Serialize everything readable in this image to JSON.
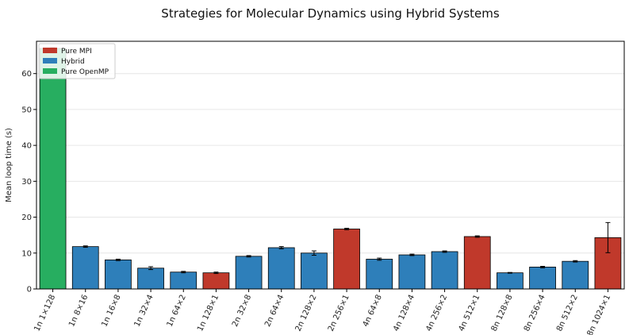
{
  "chart_data": {
    "type": "bar",
    "title": "Strategies for Molecular Dynamics using Hybrid Systems",
    "xlabel": "",
    "ylabel": "Mean loop time (s)",
    "ylim": [
      0,
      69
    ],
    "yticks": [
      0,
      10,
      20,
      30,
      40,
      50,
      60
    ],
    "grid": "horizontal",
    "legend_position": "top-left",
    "categories": [
      "1n 1×128",
      "1n 8×16",
      "1n 16×8",
      "1n 32×4",
      "1n 64×2",
      "1n 128×1",
      "2n 32×8",
      "2n 64×4",
      "2n 128×2",
      "2n 256×1",
      "4n 64×8",
      "4n 128×4",
      "4n 256×2",
      "4n 512×1",
      "8n 128×8",
      "8n 256×4",
      "8n 512×2",
      "8n 1024×1"
    ],
    "values": [
      67.0,
      11.8,
      8.1,
      5.8,
      4.7,
      4.5,
      9.1,
      11.5,
      10.0,
      16.7,
      8.3,
      9.5,
      10.4,
      14.6,
      4.5,
      6.1,
      7.7,
      14.3
    ],
    "errors": [
      0.2,
      0.2,
      0.2,
      0.4,
      0.2,
      0.2,
      0.2,
      0.3,
      0.6,
      0.2,
      0.3,
      0.2,
      0.2,
      0.2,
      0.1,
      0.2,
      0.2,
      4.2
    ],
    "strategy": [
      "Pure OpenMP",
      "Hybrid",
      "Hybrid",
      "Hybrid",
      "Hybrid",
      "Pure MPI",
      "Hybrid",
      "Hybrid",
      "Hybrid",
      "Pure MPI",
      "Hybrid",
      "Hybrid",
      "Hybrid",
      "Pure MPI",
      "Hybrid",
      "Hybrid",
      "Hybrid",
      "Pure MPI"
    ],
    "legend": [
      {
        "name": "Pure MPI",
        "color": "#c0392b"
      },
      {
        "name": "Hybrid",
        "color": "#2e7fba"
      },
      {
        "name": "Pure OpenMP",
        "color": "#27ae60"
      }
    ]
  }
}
